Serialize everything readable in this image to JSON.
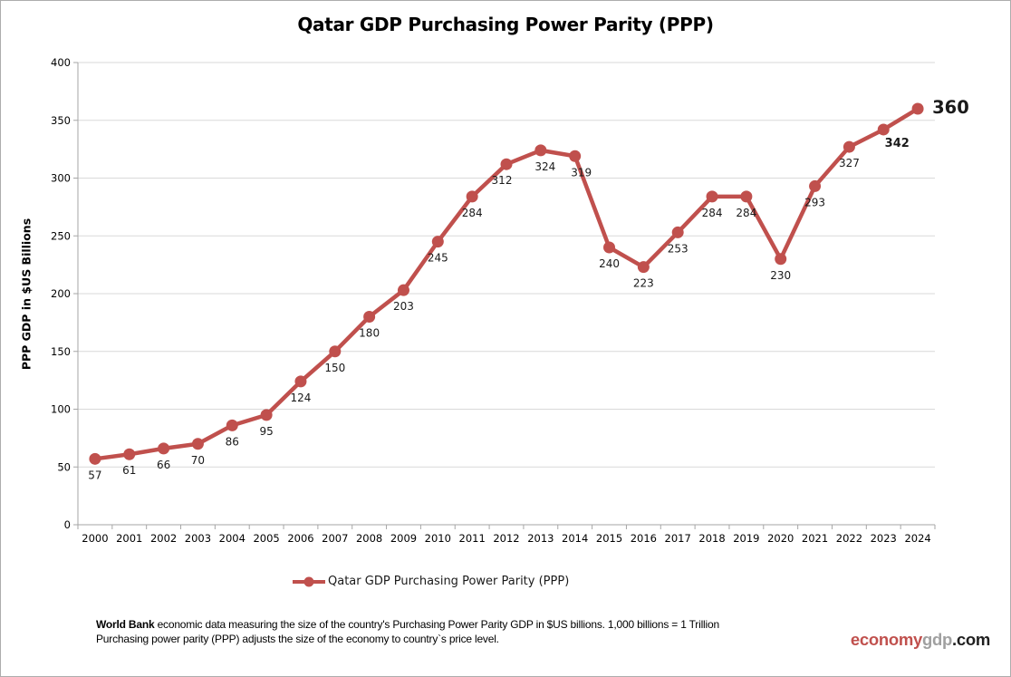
{
  "chart_data": {
    "type": "line",
    "title": "Qatar GDP Purchasing Power Parity (PPP)",
    "xlabel": "",
    "ylabel": "PPP GDP in $US Billions",
    "categories": [
      "2000",
      "2001",
      "2002",
      "2003",
      "2004",
      "2005",
      "2006",
      "2007",
      "2008",
      "2009",
      "2010",
      "2011",
      "2012",
      "2013",
      "2014",
      "2015",
      "2016",
      "2017",
      "2018",
      "2019",
      "2020",
      "2021",
      "2022",
      "2023",
      "2024"
    ],
    "series": [
      {
        "name": "Qatar GDP Purchasing Power Parity (PPP)",
        "values": [
          57,
          61,
          66,
          70,
          86,
          95,
          124,
          150,
          180,
          203,
          245,
          284,
          312,
          324,
          319,
          240,
          223,
          253,
          284,
          284,
          230,
          293,
          327,
          342,
          360
        ]
      }
    ],
    "ylim": [
      0,
      400
    ],
    "ytick_step": 50,
    "grid": true,
    "data_labels": true,
    "legend_position": "bottom",
    "line_color": "#C0504D",
    "label_color": "#1A1A1A",
    "axis_color": "#A6A6A6",
    "grid_color": "#D9D9D9",
    "label_layout": {
      "default": [
        0,
        22
      ],
      "overrides": {
        "12": [
          -5,
          22
        ],
        "13": [
          5,
          22
        ],
        "14": [
          7,
          22
        ],
        "23": [
          15,
          19
        ],
        "24": [
          16,
          5
        ]
      },
      "anchors": {
        "24": "start"
      },
      "styles": {
        "23": {
          "bold": true,
          "size": 13
        },
        "24": {
          "bold": true,
          "size": 19.5
        }
      }
    }
  },
  "footer": {
    "bold_prefix": "World Bank",
    "line1_rest": " economic data  measuring the size of the country's Purchasing Power Parity GDP in $US billions. 1,000 billions = 1 Trillion",
    "line2": "Purchasing power parity (PPP) adjusts the size of the economy to country`s price level."
  },
  "watermark": {
    "part1": "economy",
    "part2": "gdp",
    "part3": ".com",
    "color1": "#C0504D",
    "color2": "#A0A0A0",
    "color3": "#1F1F1F"
  }
}
